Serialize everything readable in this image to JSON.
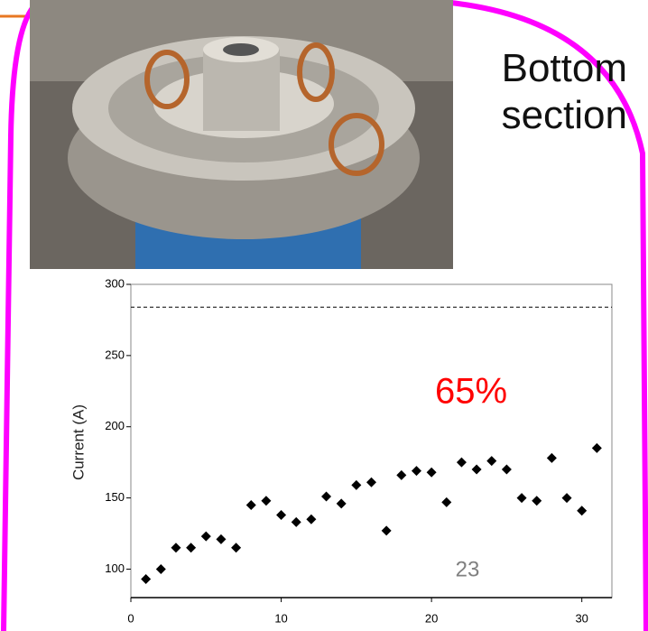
{
  "slide": {
    "caption": "Bottom section"
  },
  "chart_data": {
    "type": "scatter",
    "y_label": "Current (A)",
    "x": [
      1,
      2,
      3,
      4,
      5,
      6,
      7,
      8,
      9,
      10,
      11,
      12,
      13,
      14,
      15,
      16,
      17,
      18,
      19,
      20,
      21,
      22,
      23,
      24,
      25,
      26,
      27,
      28,
      29,
      30,
      31
    ],
    "series": [
      {
        "color": "#000000",
        "values": [
          93,
          100,
          115,
          115,
          123,
          121,
          115,
          145,
          148,
          138,
          133,
          135,
          151,
          146,
          159,
          161,
          127,
          166,
          169,
          168,
          147,
          175,
          170,
          176,
          170,
          150,
          148,
          178,
          150,
          141,
          185
        ]
      }
    ],
    "xlim": [
      0,
      32
    ],
    "ylim": [
      80,
      300
    ],
    "xticks": [
      0,
      10,
      20,
      30
    ],
    "yticks": [
      100,
      150,
      200,
      250,
      300
    ],
    "reference_line": 284,
    "annotations": [
      {
        "text": "65%",
        "color": "#ff0000"
      },
      {
        "text": "23",
        "color": "#808080"
      }
    ]
  }
}
